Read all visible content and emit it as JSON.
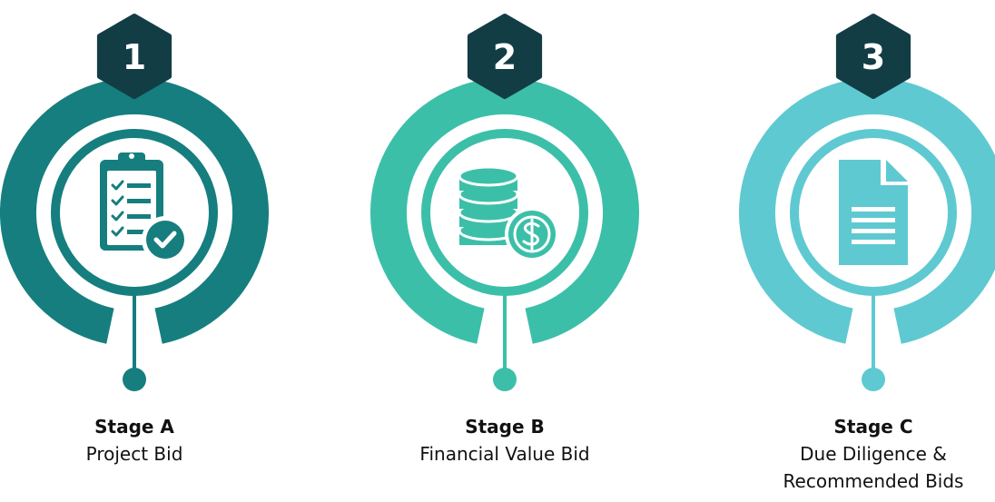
{
  "stages": [
    {
      "number": "1",
      "title": "Stage A",
      "lines": [
        "Project Bid"
      ]
    },
    {
      "number": "2",
      "title": "Stage B",
      "lines": [
        "Financial Value Bid"
      ]
    },
    {
      "number": "3",
      "title": "Stage C",
      "lines": [
        "Due Diligence &",
        "Recommended Bids"
      ]
    }
  ]
}
